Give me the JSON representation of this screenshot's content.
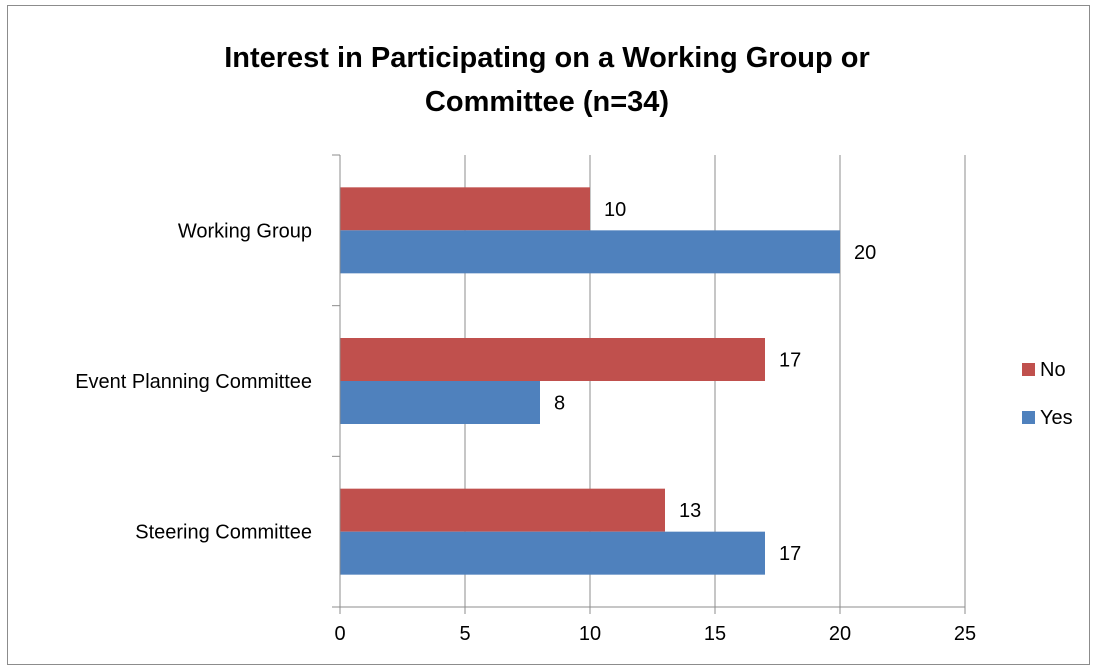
{
  "chart_data": {
    "type": "bar",
    "orientation": "horizontal",
    "title_lines": [
      "Interest in Participating on a Working Group or",
      "Committee (n=34)"
    ],
    "categories": [
      "Working Group",
      "Event Planning Committee",
      "Steering Committee"
    ],
    "series": [
      {
        "name": "No",
        "color": "#c0504d",
        "values": [
          10,
          17,
          13
        ]
      },
      {
        "name": "Yes",
        "color": "#4f81bd",
        "values": [
          20,
          8,
          17
        ]
      }
    ],
    "xlim": [
      0,
      25
    ],
    "xticks": [
      0,
      5,
      10,
      15,
      20,
      25
    ],
    "grid": true,
    "legend_position": "right",
    "legend_order": [
      "No",
      "Yes"
    ]
  }
}
